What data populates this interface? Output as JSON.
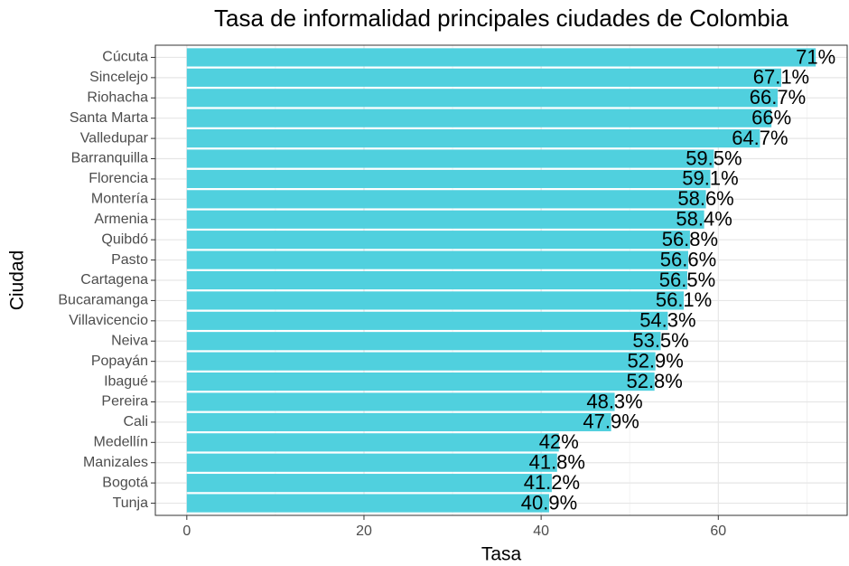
{
  "chart_data": {
    "type": "bar",
    "orientation": "horizontal",
    "title": "Tasa de informalidad principales ciudades de Colombia",
    "x_label": "Tasa",
    "y_label": "Ciudad",
    "categories": [
      "Cúcuta",
      "Sincelejo",
      "Riohacha",
      "Santa Marta",
      "Valledupar",
      "Barranquilla",
      "Florencia",
      "Montería",
      "Armenia",
      "Quibdó",
      "Pasto",
      "Cartagena",
      "Bucaramanga",
      "Villavicencio",
      "Neiva",
      "Popayán",
      "Ibagué",
      "Pereira",
      "Cali",
      "Medellín",
      "Manizales",
      "Bogotá",
      "Tunja"
    ],
    "values": [
      71,
      67.1,
      66.7,
      66,
      64.7,
      59.5,
      59.1,
      58.6,
      58.4,
      56.8,
      56.6,
      56.5,
      56.1,
      54.3,
      53.5,
      52.9,
      52.8,
      48.3,
      47.9,
      42,
      41.8,
      41.2,
      40.9
    ],
    "value_labels": [
      "71%",
      "67.1%",
      "66.7%",
      "66%",
      "64.7%",
      "59.5%",
      "59.1%",
      "58.6%",
      "58.4%",
      "56.8%",
      "56.6%",
      "56.5%",
      "56.1%",
      "54.3%",
      "53.5%",
      "52.9%",
      "52.8%",
      "48.3%",
      "47.9%",
      "42%",
      "41.8%",
      "41.2%",
      "40.9%"
    ],
    "color": "#50d0de",
    "xlim": [
      -3.55,
      74.55
    ],
    "xticks": [
      0,
      20,
      40,
      60
    ],
    "x_minor_ticks": [
      10,
      30,
      50,
      70
    ],
    "grid": true
  }
}
